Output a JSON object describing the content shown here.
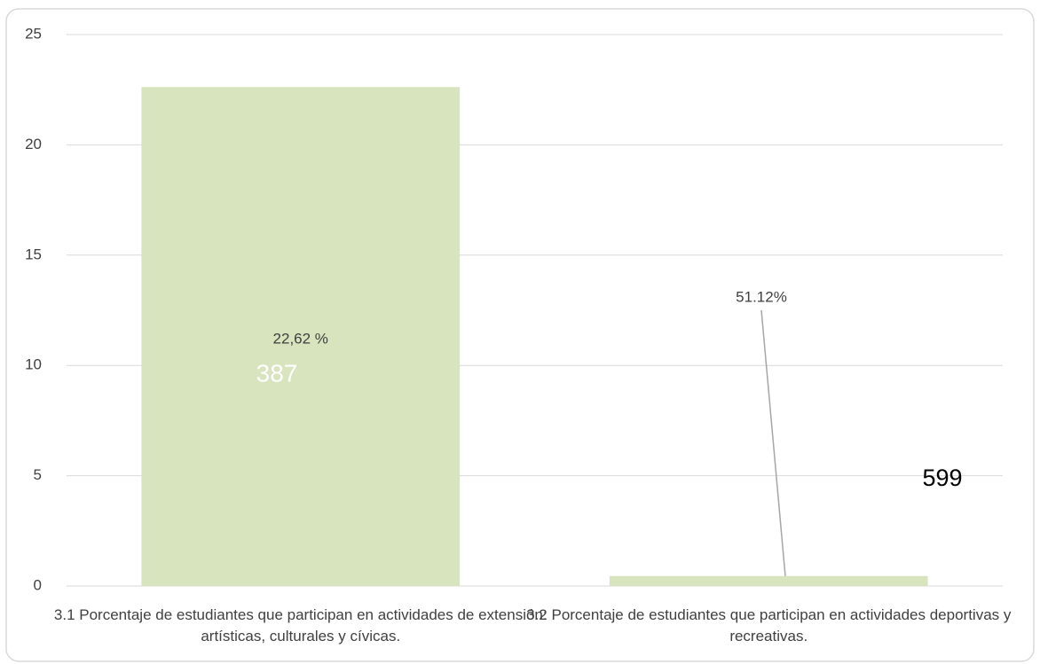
{
  "chart_data": {
    "type": "bar",
    "categories": [
      "3.1 Porcentaje de estudiantes que participan en actividades de extensión: artísticas, culturales y cívicas.",
      "3.2 Porcentaje de estudiantes que participan en actividades deportivas y recreativas."
    ],
    "values": [
      22.62,
      0.45
    ],
    "value_labels": [
      "22,62 %",
      null
    ],
    "color": "#d7e4bd",
    "ylim": [
      0,
      25
    ],
    "yticks": [
      0,
      5,
      10,
      15,
      20,
      25
    ],
    "grid": true,
    "annotations": [
      "387",
      "51.12%",
      "599"
    ]
  }
}
